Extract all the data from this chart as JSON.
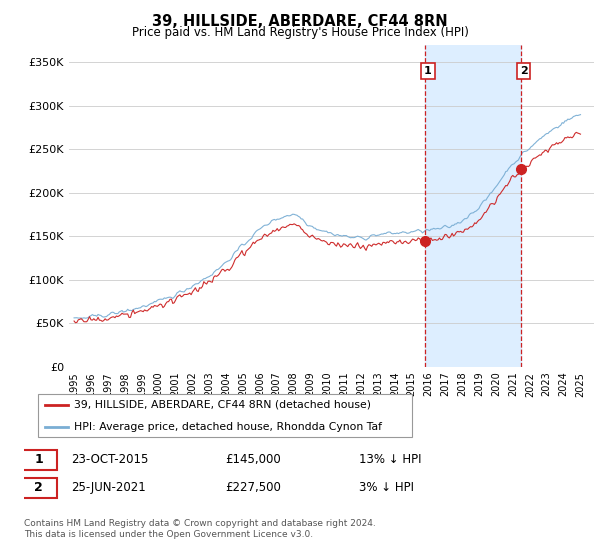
{
  "title": "39, HILLSIDE, ABERDARE, CF44 8RN",
  "subtitle": "Price paid vs. HM Land Registry's House Price Index (HPI)",
  "ylabel_ticks": [
    "£0",
    "£50K",
    "£100K",
    "£150K",
    "£200K",
    "£250K",
    "£300K",
    "£350K"
  ],
  "ytick_values": [
    0,
    50000,
    100000,
    150000,
    200000,
    250000,
    300000,
    350000
  ],
  "ylim": [
    0,
    370000
  ],
  "xlim_start": 1994.7,
  "xlim_end": 2025.8,
  "hpi_color": "#7aaed4",
  "price_color": "#cc2222",
  "shaded_color": "#ddeeff",
  "vline_color": "#cc2222",
  "marker1_x": 2015.81,
  "marker1_y": 145000,
  "marker1_label": "1",
  "marker2_x": 2021.48,
  "marker2_y": 227500,
  "marker2_label": "2",
  "vline1_x": 2015.81,
  "vline2_x": 2021.48,
  "legend_line1": "39, HILLSIDE, ABERDARE, CF44 8RN (detached house)",
  "legend_line2": "HPI: Average price, detached house, Rhondda Cynon Taf",
  "table_row1": [
    "1",
    "23-OCT-2015",
    "£145,000",
    "13% ↓ HPI"
  ],
  "table_row2": [
    "2",
    "25-JUN-2021",
    "£227,500",
    "3% ↓ HPI"
  ],
  "footer": "Contains HM Land Registry data © Crown copyright and database right 2024.\nThis data is licensed under the Open Government Licence v3.0.",
  "xtick_years": [
    1995,
    1996,
    1997,
    1998,
    1999,
    2000,
    2001,
    2002,
    2003,
    2004,
    2005,
    2006,
    2007,
    2008,
    2009,
    2010,
    2011,
    2012,
    2013,
    2014,
    2015,
    2016,
    2017,
    2018,
    2019,
    2020,
    2021,
    2022,
    2023,
    2024,
    2025
  ]
}
